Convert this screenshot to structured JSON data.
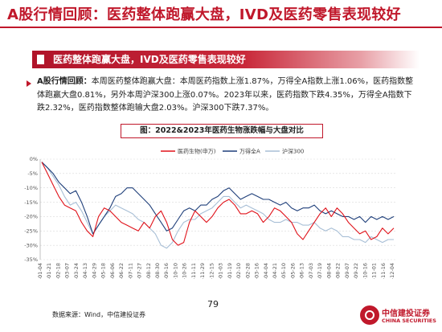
{
  "page": {
    "title": "A股行情回顾：医药整体跑赢大盘，IVD及医药零售表现较好",
    "banner": "医药整体跑赢大盘，IVD及医药零售表现较好",
    "bullet_lead": "A股行情回顾：",
    "bullet_text": "本周医药整体跑赢大盘：本周医药指数上涨1.87%，万得全A指数上涨1.06%，医药指数整体跑赢大盘0.81%，另外本周沪深300上涨0.07%。2023年以来，医药指数下跌4.35%，万得全A指数下跌2.32%，医药指数整体跑输大盘2.03%。沪深300下跌7.37%。",
    "chart_caption": "图：2022&2023年医药生物涨跌幅与大盘对比",
    "source": "数据来源：Wind，中信建投证券",
    "page_number": "79",
    "logo_cn": "中信建投证券",
    "logo_en": "CHINA SECURITIES",
    "colors": {
      "accent": "#c0182b",
      "pharma": "#e0121a",
      "wind_a": "#1f3f7a",
      "hs300": "#a8bfd6"
    }
  },
  "chart_data": {
    "type": "line",
    "x_ticks": [
      "2022-01-04",
      "2022-01-21",
      "2022-02-18",
      "2022-03-07",
      "2022-03-24",
      "2022-04-13",
      "2022-04-29",
      "2022-05-18",
      "2022-06-06",
      "2022-06-22",
      "2022-07-11",
      "2022-07-27",
      "2022-08-12",
      "2022-08-30",
      "2022-09-16",
      "2022-10-10",
      "2022-10-26",
      "2022-11-11",
      "2022-11-29",
      "2022-12-15",
      "2023-01-03",
      "2023-01-19",
      "2023-02-10",
      "2023-02-28",
      "2023-03-16",
      "2023-04-04",
      "2023-04-21",
      "2023-05-10",
      "2023-05-26",
      "2023-06-13",
      "2023-07-03",
      "2023-07-19",
      "2023-08-04",
      "2023-08-22",
      "2023-09-07",
      "2023-09-22",
      "2023-10-16",
      "2023-11-01",
      "2023-11-16",
      "2023-12-04"
    ],
    "ylim": [
      -35,
      0
    ],
    "yticks": [
      0,
      -5,
      -10,
      -15,
      -20,
      -25,
      -30,
      -35
    ],
    "ytick_labels": [
      "0%",
      "-5%",
      "-10%",
      "-15%",
      "-20%",
      "-25%",
      "-30%",
      "-35%"
    ],
    "series": [
      {
        "name": "医药生物(申万)",
        "color": "#e0121a",
        "values": [
          -1,
          -5,
          -9,
          -13,
          -16,
          -17,
          -18,
          -22,
          -25,
          -27,
          -20,
          -17,
          -18,
          -20,
          -22,
          -23,
          -24,
          -25,
          -22,
          -24,
          -20,
          -18,
          -22,
          -28,
          -30,
          -29,
          -22,
          -18,
          -20,
          -22,
          -20,
          -17,
          -15,
          -14,
          -16,
          -19,
          -19,
          -18,
          -19,
          -22,
          -20,
          -17,
          -18,
          -20,
          -22,
          -26,
          -28,
          -25,
          -22,
          -19,
          -17,
          -20,
          -17,
          -19,
          -22,
          -24,
          -26,
          -25,
          -28,
          -27,
          -24,
          -26,
          -24
        ]
      },
      {
        "name": "万得全A",
        "color": "#1f3f7a",
        "values": [
          -1,
          -3,
          -5,
          -8,
          -10,
          -12,
          -11,
          -15,
          -20,
          -26,
          -23,
          -20,
          -17,
          -13,
          -12,
          -10,
          -10,
          -12,
          -14,
          -16,
          -19,
          -22,
          -25,
          -24,
          -21,
          -18,
          -17,
          -18,
          -16,
          -16,
          -14,
          -13,
          -11,
          -10,
          -12,
          -14,
          -13,
          -12,
          -13,
          -14,
          -14,
          -15,
          -16,
          -15,
          -17,
          -18,
          -17,
          -17,
          -16,
          -18,
          -19,
          -18,
          -19,
          -20,
          -20,
          -21,
          -20,
          -22,
          -20,
          -21,
          -20,
          -21,
          -20
        ]
      },
      {
        "name": "沪深300",
        "color": "#a8bfd6",
        "values": [
          -1,
          -3,
          -6,
          -9,
          -13,
          -16,
          -15,
          -18,
          -22,
          -26,
          -23,
          -20,
          -18,
          -16,
          -17,
          -18,
          -19,
          -21,
          -22,
          -24,
          -26,
          -30,
          -31,
          -29,
          -25,
          -22,
          -21,
          -21,
          -19,
          -18,
          -17,
          -15,
          -13,
          -13,
          -15,
          -17,
          -16,
          -17,
          -18,
          -19,
          -21,
          -22,
          -22,
          -21,
          -22,
          -22,
          -23,
          -23,
          -22,
          -24,
          -25,
          -24,
          -25,
          -27,
          -27,
          -28,
          -28,
          -29,
          -27,
          -28,
          -29,
          -28,
          -28
        ]
      }
    ]
  }
}
